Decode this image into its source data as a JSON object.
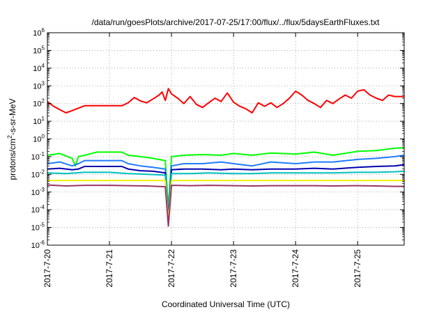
{
  "chart_data": {
    "type": "line",
    "title": "/data/run/goesPlots/archive/2017-07-25/17:00/flux/../flux/5daysEarthFluxes.txt",
    "xlabel": "Coordinated Universal Time (UTC)",
    "ylabel": {
      "pre": "protons/cm",
      "sup": "2",
      "post": "-s-sr-MeV"
    },
    "yscale": "log",
    "ylim": [
      -6,
      6
    ],
    "y_ticks": [
      {
        "exp": -6,
        "base": "10",
        "sup": "-6"
      },
      {
        "exp": -5,
        "base": "10",
        "sup": "-5"
      },
      {
        "exp": -4,
        "base": "10",
        "sup": "-4"
      },
      {
        "exp": -3,
        "base": "10",
        "sup": "-3"
      },
      {
        "exp": -2,
        "base": "10",
        "sup": "-2"
      },
      {
        "exp": -1,
        "base": "10",
        "sup": "-1"
      },
      {
        "exp": 0,
        "base": "10",
        "sup": "0"
      },
      {
        "exp": 1,
        "base": "10",
        "sup": "1"
      },
      {
        "exp": 2,
        "base": "10",
        "sup": "2"
      },
      {
        "exp": 3,
        "base": "10",
        "sup": "3"
      },
      {
        "exp": 4,
        "base": "10",
        "sup": "4"
      },
      {
        "exp": 5,
        "base": "10",
        "sup": "5"
      },
      {
        "exp": 6,
        "base": "10",
        "sup": "6"
      }
    ],
    "xlim": [
      0,
      5.75
    ],
    "x_ticks": [
      {
        "day": 0,
        "label": "2017-7-20"
      },
      {
        "day": 1,
        "label": "2017-7-21"
      },
      {
        "day": 2,
        "label": "2017-7-22"
      },
      {
        "day": 3,
        "label": "2017-7-23"
      },
      {
        "day": 4,
        "label": "2017-7-24"
      },
      {
        "day": 5,
        "label": "2017-7-25"
      }
    ],
    "grid": true,
    "series": [
      {
        "color": "#ff0000",
        "x": [
          0,
          0.1,
          0.2,
          0.3,
          0.4,
          0.5,
          0.6,
          0.7,
          0.8,
          0.9,
          1.0,
          1.1,
          1.2,
          1.3,
          1.4,
          1.5,
          1.6,
          1.7,
          1.8,
          1.85,
          1.9,
          1.95,
          2.0,
          2.1,
          2.2,
          2.3,
          2.4,
          2.5,
          2.6,
          2.7,
          2.8,
          2.9,
          3.0,
          3.1,
          3.2,
          3.3,
          3.4,
          3.5,
          3.6,
          3.7,
          3.8,
          3.9,
          4.0,
          4.1,
          4.2,
          4.3,
          4.4,
          4.5,
          4.6,
          4.7,
          4.8,
          4.9,
          5.0,
          5.1,
          5.2,
          5.3,
          5.4,
          5.5,
          5.6,
          5.75
        ],
        "y": [
          130,
          70,
          45,
          30,
          40,
          55,
          75,
          75,
          75,
          75,
          75,
          75,
          75,
          110,
          220,
          140,
          110,
          180,
          300,
          450,
          150,
          700,
          350,
          200,
          100,
          250,
          90,
          60,
          110,
          200,
          130,
          400,
          120,
          70,
          50,
          30,
          110,
          70,
          110,
          60,
          100,
          200,
          500,
          300,
          150,
          100,
          60,
          150,
          100,
          180,
          300,
          200,
          500,
          600,
          300,
          200,
          150,
          300,
          250,
          250
        ]
      },
      {
        "color": "#00ff00",
        "x": [
          0,
          0.2,
          0.4,
          0.45,
          0.5,
          0.6,
          0.8,
          1.0,
          1.2,
          1.3,
          1.5,
          1.7,
          1.9,
          1.95,
          2.0,
          2.2,
          2.5,
          2.8,
          3.0,
          3.3,
          3.6,
          4.0,
          4.3,
          4.6,
          5.0,
          5.3,
          5.6,
          5.75
        ],
        "y": [
          0.12,
          0.15,
          0.08,
          0.03,
          0.1,
          0.12,
          0.18,
          0.18,
          0.18,
          0.12,
          0.1,
          0.08,
          0.06,
          0.0001,
          0.1,
          0.12,
          0.13,
          0.12,
          0.15,
          0.12,
          0.16,
          0.14,
          0.18,
          0.12,
          0.2,
          0.22,
          0.3,
          0.32
        ]
      },
      {
        "color": "#1e7cff",
        "x": [
          0,
          0.2,
          0.4,
          0.5,
          0.6,
          0.8,
          1.0,
          1.2,
          1.3,
          1.5,
          1.7,
          1.9,
          1.95,
          2.0,
          2.2,
          2.5,
          2.8,
          3.0,
          3.3,
          3.6,
          4.0,
          4.3,
          4.6,
          5.0,
          5.3,
          5.6,
          5.75
        ],
        "y": [
          0.04,
          0.05,
          0.03,
          0.04,
          0.06,
          0.06,
          0.06,
          0.06,
          0.04,
          0.03,
          0.025,
          0.02,
          5e-05,
          0.03,
          0.04,
          0.04,
          0.05,
          0.04,
          0.03,
          0.05,
          0.04,
          0.05,
          0.05,
          0.07,
          0.08,
          0.1,
          0.12
        ]
      },
      {
        "color": "#0000b0",
        "x": [
          0,
          0.2,
          0.4,
          0.5,
          0.6,
          0.8,
          1.0,
          1.2,
          1.3,
          1.5,
          1.7,
          1.9,
          1.95,
          2.0,
          2.2,
          2.5,
          2.8,
          3.0,
          3.3,
          3.6,
          4.0,
          4.3,
          4.6,
          5.0,
          5.3,
          5.6,
          5.75
        ],
        "y": [
          0.02,
          0.022,
          0.018,
          0.02,
          0.028,
          0.028,
          0.028,
          0.028,
          0.02,
          0.016,
          0.015,
          0.012,
          3e-05,
          0.018,
          0.02,
          0.02,
          0.018,
          0.02,
          0.018,
          0.02,
          0.02,
          0.022,
          0.02,
          0.025,
          0.028,
          0.03,
          0.035
        ]
      },
      {
        "color": "#00c0c0",
        "x": [
          0,
          0.3,
          0.6,
          1.0,
          1.3,
          1.6,
          1.9,
          1.95,
          2.0,
          2.3,
          2.6,
          3.0,
          3.3,
          3.6,
          4.0,
          4.3,
          4.6,
          5.0,
          5.3,
          5.6,
          5.75
        ],
        "y": [
          0.012,
          0.011,
          0.013,
          0.013,
          0.011,
          0.01,
          0.009,
          2e-05,
          0.011,
          0.011,
          0.012,
          0.011,
          0.011,
          0.012,
          0.012,
          0.012,
          0.012,
          0.013,
          0.013,
          0.014,
          0.015
        ]
      },
      {
        "color": "#f0f000",
        "x": [
          0,
          0.5,
          1.0,
          1.5,
          1.9,
          1.95,
          2.0,
          2.5,
          3.0,
          3.5,
          4.0,
          4.5,
          5.0,
          5.5,
          5.75
        ],
        "y": [
          0.0045,
          0.0045,
          0.0045,
          0.0045,
          0.0045,
          2e-05,
          0.0045,
          0.0045,
          0.0045,
          0.0045,
          0.0045,
          0.0045,
          0.0045,
          0.0045,
          0.0045
        ]
      },
      {
        "color": "#993366",
        "x": [
          0,
          0.3,
          0.6,
          1.0,
          1.3,
          1.6,
          1.9,
          1.95,
          2.0,
          2.3,
          2.6,
          3.0,
          3.3,
          3.6,
          4.0,
          4.3,
          4.6,
          5.0,
          5.3,
          5.6,
          5.75
        ],
        "y": [
          0.0025,
          0.0022,
          0.0024,
          0.0024,
          0.0023,
          0.0022,
          0.002,
          1.2e-05,
          0.0024,
          0.0023,
          0.0024,
          0.0023,
          0.0022,
          0.0023,
          0.0023,
          0.0023,
          0.0022,
          0.0023,
          0.0022,
          0.0021,
          0.0021
        ]
      }
    ]
  }
}
